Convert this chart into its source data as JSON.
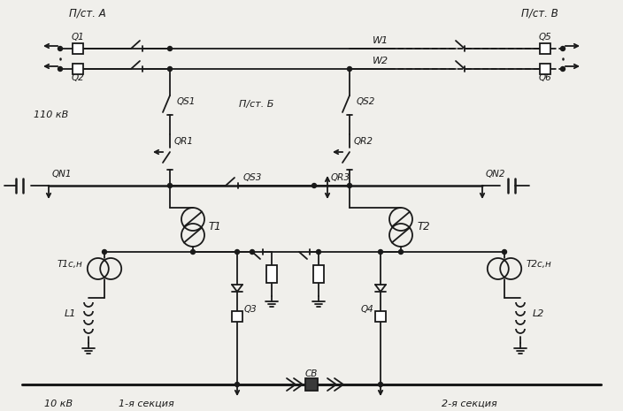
{
  "bg_color": "#f0efeb",
  "lc": "#1a1a1a",
  "figsize": [
    7.04,
    4.65
  ],
  "dpi": 100,
  "labels": {
    "pst_A": "П/ст. А",
    "pst_B": "П/ст. В",
    "pst_B2": "П/ст. Б",
    "Q1": "Q1",
    "Q2": "Q2",
    "Q5": "Q5",
    "Q6": "Q6",
    "W1": "W1",
    "W2": "W2",
    "QS1": "QS1",
    "QS2": "QS2",
    "QR1": "QR1",
    "QR2": "QR2",
    "QN1": "QN1",
    "QN2": "QN2",
    "QS3": "QS3",
    "QR3": "QR3",
    "T1": "T1",
    "T2": "T2",
    "T1sn": "T1с,н",
    "T2sn": "T2с,н",
    "L1": "L1",
    "L2": "L2",
    "Q3": "Q3",
    "Q4": "Q4",
    "CB": "СВ",
    "v110": "110 кВ",
    "v10": "10 кВ",
    "sec1": "1-я секция",
    "sec2": "2-я секция"
  }
}
